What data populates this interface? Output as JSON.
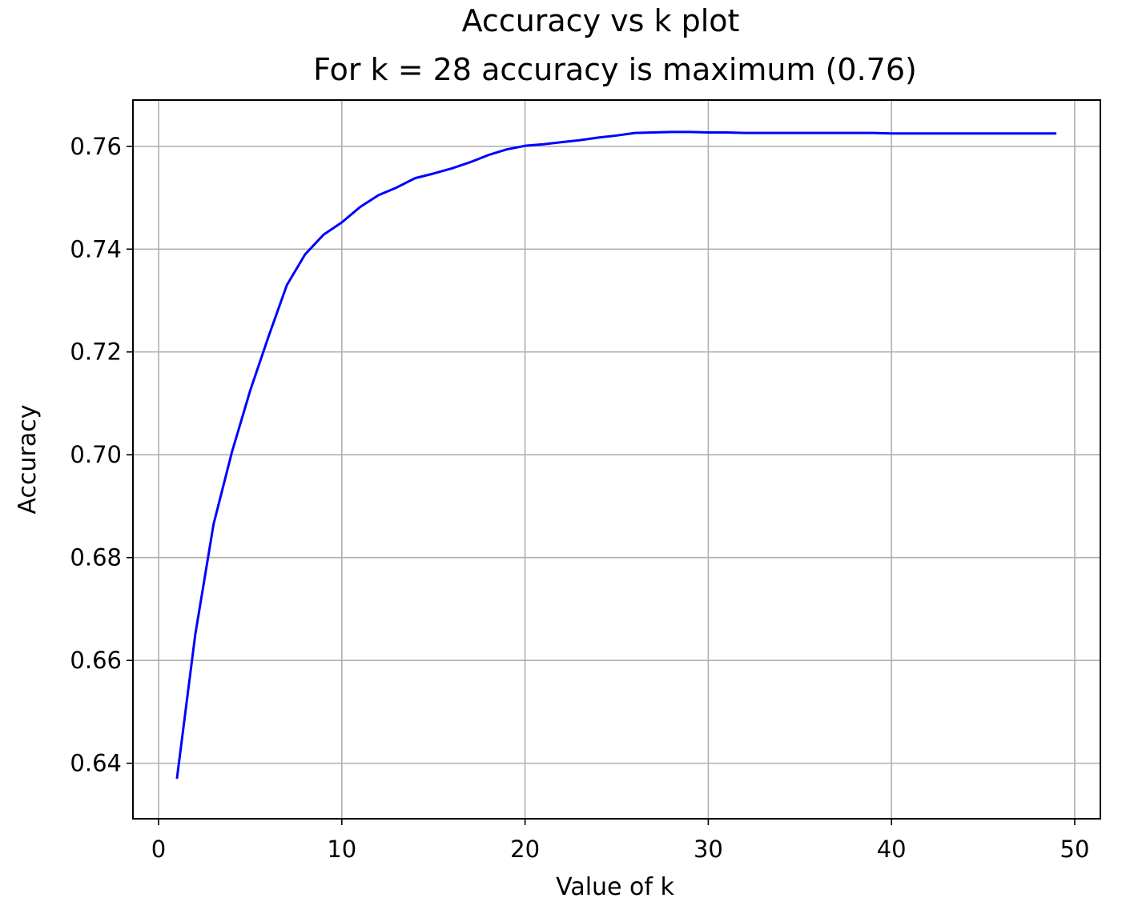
{
  "chart_data": {
    "type": "line",
    "title": "Accuracy vs k plot",
    "subtitle": "For k = 28 accuracy is maximum (0.76)",
    "xlabel": "Value of k",
    "ylabel": "Accuracy",
    "xlim": [
      -1.4,
      51.4
    ],
    "ylim": [
      0.6292,
      0.769
    ],
    "xticks": [
      0,
      10,
      20,
      30,
      40,
      50
    ],
    "xtick_labels": [
      "0",
      "10",
      "20",
      "30",
      "40",
      "50"
    ],
    "yticks": [
      0.64,
      0.66,
      0.68,
      0.7,
      0.72,
      0.74,
      0.76
    ],
    "ytick_labels": [
      "0.64",
      "0.66",
      "0.68",
      "0.70",
      "0.72",
      "0.74",
      "0.76"
    ],
    "grid": true,
    "line_color": "#0000ff",
    "series": [
      {
        "x": [
          1,
          2,
          3,
          4,
          5,
          6,
          7,
          8,
          9,
          10,
          11,
          12,
          13,
          14,
          15,
          16,
          17,
          18,
          19,
          20,
          21,
          22,
          23,
          24,
          25,
          26,
          27,
          28,
          29,
          30,
          31,
          32,
          33,
          34,
          35,
          36,
          37,
          38,
          39,
          40,
          41,
          42,
          43,
          44,
          45,
          46,
          47,
          48,
          49
        ],
        "values": [
          0.637,
          0.665,
          0.6865,
          0.7005,
          0.7125,
          0.723,
          0.733,
          0.739,
          0.7428,
          0.7452,
          0.7482,
          0.7505,
          0.752,
          0.7538,
          0.7547,
          0.7557,
          0.7569,
          0.7583,
          0.7594,
          0.7601,
          0.7604,
          0.7608,
          0.7612,
          0.7617,
          0.7621,
          0.7626,
          0.7627,
          0.7628,
          0.7628,
          0.7627,
          0.7627,
          0.7626,
          0.7626,
          0.7626,
          0.7626,
          0.7626,
          0.7626,
          0.7626,
          0.7626,
          0.7625,
          0.7625,
          0.7625,
          0.7625,
          0.7625,
          0.7625,
          0.7625,
          0.7625,
          0.7625,
          0.7625
        ]
      }
    ]
  }
}
